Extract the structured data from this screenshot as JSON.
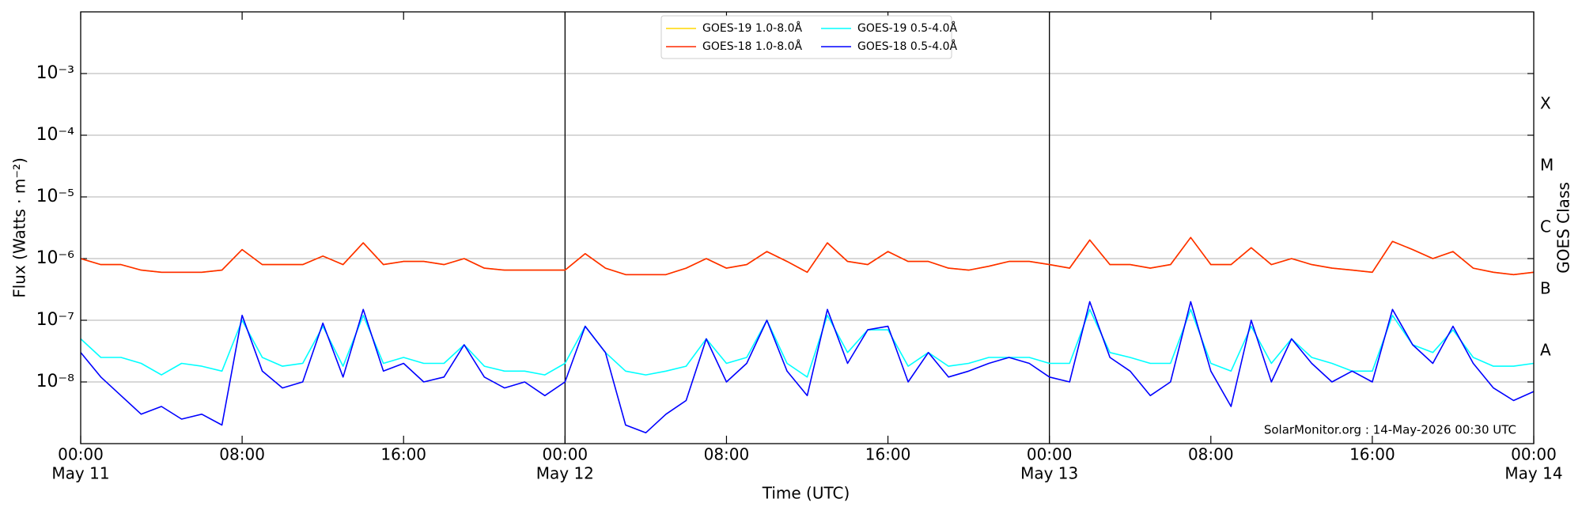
{
  "chart_data": {
    "type": "line",
    "xlabel": "Time (UTC)",
    "ylabel": "Flux (Watts · m⁻²)",
    "y2label": "GOES Class",
    "annotation": "SolarMonitor.org : 14-May-2026 00:30 UTC",
    "log_scale": true,
    "grid": true,
    "legend": "top",
    "x": [
      0,
      1,
      2,
      3,
      4,
      5,
      6,
      7,
      8,
      9,
      10,
      11,
      12,
      13,
      14,
      15,
      16,
      17,
      18,
      19,
      20,
      21,
      22,
      23,
      24,
      25,
      26,
      27,
      28,
      29,
      30,
      31,
      32,
      33,
      34,
      35,
      36,
      37,
      38,
      39,
      40,
      41,
      42,
      43,
      44,
      45,
      46,
      47,
      48,
      49,
      50,
      51,
      52,
      53,
      54,
      55,
      56,
      57,
      58,
      59,
      60,
      61,
      62,
      63,
      64,
      65,
      66,
      67,
      68,
      69,
      70,
      71,
      72
    ],
    "xlim": [
      0,
      72
    ],
    "xticks": [
      {
        "value": 0,
        "label": "00:00"
      },
      {
        "value": 8,
        "label": "08:00"
      },
      {
        "value": 16,
        "label": "16:00"
      },
      {
        "value": 24,
        "label": "00:00"
      },
      {
        "value": 32,
        "label": "08:00"
      },
      {
        "value": 40,
        "label": "16:00"
      },
      {
        "value": 48,
        "label": "00:00"
      },
      {
        "value": 56,
        "label": "08:00"
      },
      {
        "value": 64,
        "label": "16:00"
      },
      {
        "value": 72,
        "label": "00:00"
      }
    ],
    "xtick_dates": [
      {
        "value": 0,
        "label": "May 11"
      },
      {
        "value": 24,
        "label": "May 12"
      },
      {
        "value": 48,
        "label": "May 13"
      },
      {
        "value": 72,
        "label": "May 14"
      }
    ],
    "vlines": [
      24,
      48
    ],
    "ylim": [
      1e-09,
      0.01
    ],
    "yticks": [
      {
        "value": 1e-08,
        "label": "10⁻⁸"
      },
      {
        "value": 1e-07,
        "label": "10⁻⁷"
      },
      {
        "value": 1e-06,
        "label": "10⁻⁶"
      },
      {
        "value": 1e-05,
        "label": "10⁻⁵"
      },
      {
        "value": 0.0001,
        "label": "10⁻⁴"
      },
      {
        "value": 0.001,
        "label": "10⁻³"
      }
    ],
    "y2lim": [
      1e-09,
      0.01
    ],
    "y2ticks": [
      {
        "value": 3.16e-08,
        "label": "A"
      },
      {
        "value": 3.16e-07,
        "label": "B"
      },
      {
        "value": 3.16e-06,
        "label": "C"
      },
      {
        "value": 3.16e-05,
        "label": "M"
      },
      {
        "value": 0.000316,
        "label": "X"
      }
    ],
    "series": [
      {
        "name": "GOES-19 1.0-8.0Å",
        "color": "#ffd700",
        "values": [
          1e-06,
          8e-07,
          8e-07,
          6.5e-07,
          6e-07,
          6e-07,
          6e-07,
          6.5e-07,
          1.4e-06,
          8e-07,
          8e-07,
          8e-07,
          1.1e-06,
          8e-07,
          1.8e-06,
          8e-07,
          9e-07,
          9e-07,
          8e-07,
          1e-06,
          7e-07,
          6.5e-07,
          6.5e-07,
          6.5e-07,
          6.5e-07,
          1.2e-06,
          7e-07,
          5.5e-07,
          5.5e-07,
          5.5e-07,
          7e-07,
          1e-06,
          7e-07,
          8e-07,
          1.3e-06,
          9e-07,
          6e-07,
          1.8e-06,
          9e-07,
          8e-07,
          1.3e-06,
          9e-07,
          9e-07,
          7e-07,
          6.5e-07,
          7.5e-07,
          9e-07,
          9e-07,
          8e-07,
          7e-07,
          2e-06,
          8e-07,
          8e-07,
          7e-07,
          8e-07,
          2.2e-06,
          8e-07,
          8e-07,
          1.5e-06,
          8e-07,
          1e-06,
          8e-07,
          7e-07,
          6.5e-07,
          6e-07,
          1.9e-06,
          1.4e-06,
          1e-06,
          1.3e-06,
          7e-07,
          6e-07,
          5.5e-07,
          6e-07
        ]
      },
      {
        "name": "GOES-18 1.0-8.0Å",
        "color": "#ff2a00",
        "values": [
          1e-06,
          8e-07,
          8e-07,
          6.5e-07,
          6e-07,
          6e-07,
          6e-07,
          6.5e-07,
          1.4e-06,
          8e-07,
          8e-07,
          8e-07,
          1.1e-06,
          8e-07,
          1.8e-06,
          8e-07,
          9e-07,
          9e-07,
          8e-07,
          1e-06,
          7e-07,
          6.5e-07,
          6.5e-07,
          6.5e-07,
          6.5e-07,
          1.2e-06,
          7e-07,
          5.5e-07,
          5.5e-07,
          5.5e-07,
          7e-07,
          1e-06,
          7e-07,
          8e-07,
          1.3e-06,
          9e-07,
          6e-07,
          1.8e-06,
          9e-07,
          8e-07,
          1.3e-06,
          9e-07,
          9e-07,
          7e-07,
          6.5e-07,
          7.5e-07,
          9e-07,
          9e-07,
          8e-07,
          7e-07,
          2e-06,
          8e-07,
          8e-07,
          7e-07,
          8e-07,
          2.2e-06,
          8e-07,
          8e-07,
          1.5e-06,
          8e-07,
          1e-06,
          8e-07,
          7e-07,
          6.5e-07,
          6e-07,
          1.9e-06,
          1.4e-06,
          1e-06,
          1.3e-06,
          7e-07,
          6e-07,
          5.5e-07,
          6e-07
        ]
      },
      {
        "name": "GOES-19 0.5-4.0Å",
        "color": "#00ffff",
        "values": [
          5e-08,
          2.5e-08,
          2.5e-08,
          2e-08,
          1.3e-08,
          2e-08,
          1.8e-08,
          1.5e-08,
          1e-07,
          2.5e-08,
          1.8e-08,
          2e-08,
          8e-08,
          1.8e-08,
          1.2e-07,
          2e-08,
          2.5e-08,
          2e-08,
          2e-08,
          4e-08,
          1.8e-08,
          1.5e-08,
          1.5e-08,
          1.3e-08,
          2e-08,
          8e-08,
          3e-08,
          1.5e-08,
          1.3e-08,
          1.5e-08,
          1.8e-08,
          5e-08,
          2e-08,
          2.5e-08,
          1e-07,
          2e-08,
          1.2e-08,
          1.2e-07,
          3e-08,
          7e-08,
          7e-08,
          1.8e-08,
          3e-08,
          1.8e-08,
          2e-08,
          2.5e-08,
          2.5e-08,
          2.5e-08,
          2e-08,
          2e-08,
          1.5e-07,
          3e-08,
          2.5e-08,
          2e-08,
          2e-08,
          1.5e-07,
          2e-08,
          1.5e-08,
          8e-08,
          2e-08,
          5e-08,
          2.5e-08,
          2e-08,
          1.5e-08,
          1.5e-08,
          1.2e-07,
          4e-08,
          3e-08,
          7e-08,
          2.5e-08,
          1.8e-08,
          1.8e-08,
          2e-08
        ]
      },
      {
        "name": "GOES-18 0.5-4.0Å",
        "color": "#0000ff",
        "values": [
          3e-08,
          1.2e-08,
          6e-09,
          3e-09,
          4e-09,
          2.5e-09,
          3e-09,
          2e-09,
          1.2e-07,
          1.5e-08,
          8e-09,
          1e-08,
          9e-08,
          1.2e-08,
          1.5e-07,
          1.5e-08,
          2e-08,
          1e-08,
          1.2e-08,
          4e-08,
          1.2e-08,
          8e-09,
          1e-08,
          6e-09,
          1e-08,
          8e-08,
          3e-08,
          2e-09,
          1.5e-09,
          3e-09,
          5e-09,
          5e-08,
          1e-08,
          2e-08,
          1e-07,
          1.5e-08,
          6e-09,
          1.5e-07,
          2e-08,
          7e-08,
          8e-08,
          1e-08,
          3e-08,
          1.2e-08,
          1.5e-08,
          2e-08,
          2.5e-08,
          2e-08,
          1.2e-08,
          1e-08,
          2e-07,
          2.5e-08,
          1.5e-08,
          6e-09,
          1e-08,
          2e-07,
          1.5e-08,
          4e-09,
          1e-07,
          1e-08,
          5e-08,
          2e-08,
          1e-08,
          1.5e-08,
          1e-08,
          1.5e-07,
          4e-08,
          2e-08,
          8e-08,
          2e-08,
          8e-09,
          5e-09,
          7e-09
        ]
      }
    ]
  }
}
